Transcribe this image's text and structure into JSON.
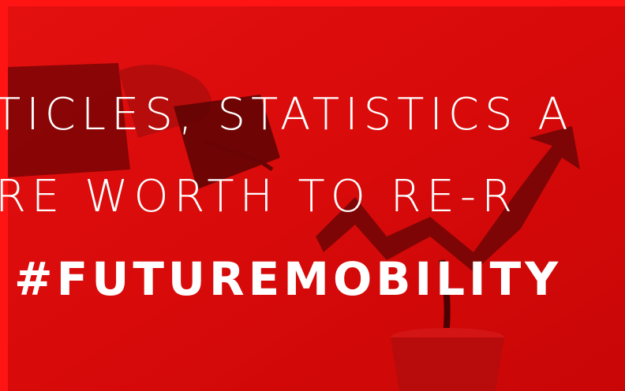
{
  "banner": {
    "lines": [
      "TICLES, STATISTICS A",
      "RE WORTH TO RE-R",
      "#FUTUREMOBILITY"
    ]
  }
}
